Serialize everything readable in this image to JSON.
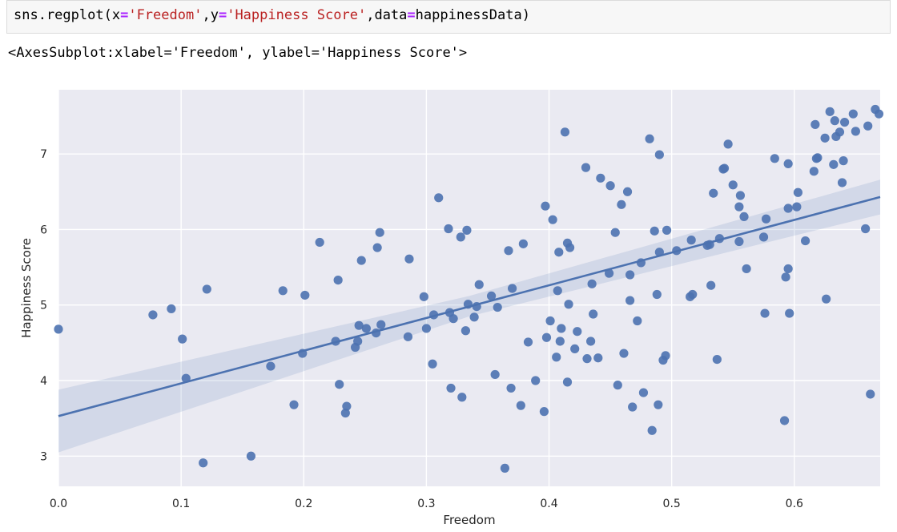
{
  "code_cell": {
    "func": "sns.regplot(",
    "arg1_name": "x",
    "arg1_eq": "=",
    "arg1_val": "'Freedom'",
    "comma1": ",",
    "arg2_name": "y",
    "arg2_eq": "=",
    "arg2_val": "'Happiness Score'",
    "comma2": ",",
    "arg3_name": "data",
    "arg3_eq": "=",
    "arg3_val": "happinessData",
    "close": ")"
  },
  "output": {
    "text": "<AxesSubplot:xlabel='Freedom', ylabel='Happiness Score'>"
  },
  "chart_data": {
    "type": "scatter",
    "xlabel": "Freedom",
    "ylabel": "Happiness Score",
    "xlim": [
      0.0,
      0.67
    ],
    "ylim": [
      2.6,
      7.85
    ],
    "xticks": [
      "0.0",
      "0.1",
      "0.2",
      "0.3",
      "0.4",
      "0.5",
      "0.6"
    ],
    "xtick_values": [
      0.0,
      0.1,
      0.2,
      0.3,
      0.4,
      0.5,
      0.6
    ],
    "yticks": [
      "3",
      "4",
      "5",
      "6",
      "7"
    ],
    "ytick_values": [
      3,
      4,
      5,
      6,
      7
    ],
    "grid": true,
    "regression_line": {
      "x": [
        0.0,
        0.67
      ],
      "y": [
        3.53,
        6.43
      ]
    },
    "confidence_band": {
      "x": [
        0.0,
        0.335,
        0.67
      ],
      "lower": [
        3.05,
        4.85,
        6.2
      ],
      "upper": [
        3.88,
        5.12,
        6.66
      ]
    },
    "colors": {
      "points": "#4c72b0",
      "line": "#4c72b0",
      "band": "#4c72b0",
      "background": "#eaeaf2",
      "grid": "#ffffff"
    },
    "points": [
      [
        0.0,
        4.68
      ],
      [
        0.077,
        4.87
      ],
      [
        0.092,
        4.95
      ],
      [
        0.101,
        4.55
      ],
      [
        0.104,
        4.03
      ],
      [
        0.118,
        2.91
      ],
      [
        0.121,
        5.21
      ],
      [
        0.157,
        3.0
      ],
      [
        0.173,
        4.19
      ],
      [
        0.183,
        5.19
      ],
      [
        0.192,
        3.68
      ],
      [
        0.199,
        4.36
      ],
      [
        0.201,
        5.13
      ],
      [
        0.213,
        5.83
      ],
      [
        0.226,
        4.52
      ],
      [
        0.228,
        5.33
      ],
      [
        0.229,
        3.95
      ],
      [
        0.234,
        3.57
      ],
      [
        0.235,
        3.66
      ],
      [
        0.242,
        4.44
      ],
      [
        0.244,
        4.52
      ],
      [
        0.245,
        4.73
      ],
      [
        0.247,
        5.59
      ],
      [
        0.251,
        4.69
      ],
      [
        0.259,
        4.63
      ],
      [
        0.26,
        5.76
      ],
      [
        0.262,
        5.96
      ],
      [
        0.263,
        4.74
      ],
      [
        0.285,
        4.58
      ],
      [
        0.286,
        5.61
      ],
      [
        0.298,
        5.11
      ],
      [
        0.3,
        4.69
      ],
      [
        0.305,
        4.22
      ],
      [
        0.306,
        4.87
      ],
      [
        0.31,
        6.42
      ],
      [
        0.318,
        6.01
      ],
      [
        0.319,
        4.9
      ],
      [
        0.32,
        3.9
      ],
      [
        0.322,
        4.82
      ],
      [
        0.328,
        5.9
      ],
      [
        0.329,
        3.78
      ],
      [
        0.332,
        4.66
      ],
      [
        0.333,
        5.99
      ],
      [
        0.334,
        5.01
      ],
      [
        0.339,
        4.84
      ],
      [
        0.341,
        4.98
      ],
      [
        0.343,
        5.27
      ],
      [
        0.353,
        5.12
      ],
      [
        0.356,
        4.08
      ],
      [
        0.358,
        4.97
      ],
      [
        0.364,
        2.84
      ],
      [
        0.367,
        5.72
      ],
      [
        0.369,
        3.9
      ],
      [
        0.37,
        5.22
      ],
      [
        0.377,
        3.67
      ],
      [
        0.379,
        5.81
      ],
      [
        0.383,
        4.51
      ],
      [
        0.389,
        4.0
      ],
      [
        0.396,
        3.59
      ],
      [
        0.397,
        6.31
      ],
      [
        0.398,
        4.57
      ],
      [
        0.401,
        4.79
      ],
      [
        0.403,
        6.13
      ],
      [
        0.406,
        4.31
      ],
      [
        0.407,
        5.19
      ],
      [
        0.408,
        5.7
      ],
      [
        0.409,
        4.52
      ],
      [
        0.41,
        4.69
      ],
      [
        0.413,
        7.29
      ],
      [
        0.415,
        5.82
      ],
      [
        0.415,
        3.98
      ],
      [
        0.416,
        5.01
      ],
      [
        0.417,
        5.76
      ],
      [
        0.421,
        4.42
      ],
      [
        0.423,
        4.65
      ],
      [
        0.43,
        6.82
      ],
      [
        0.431,
        4.29
      ],
      [
        0.434,
        4.52
      ],
      [
        0.435,
        5.28
      ],
      [
        0.436,
        4.88
      ],
      [
        0.44,
        4.3
      ],
      [
        0.442,
        6.68
      ],
      [
        0.449,
        5.42
      ],
      [
        0.45,
        6.58
      ],
      [
        0.454,
        5.96
      ],
      [
        0.456,
        3.94
      ],
      [
        0.459,
        6.33
      ],
      [
        0.461,
        4.36
      ],
      [
        0.464,
        6.5
      ],
      [
        0.466,
        5.4
      ],
      [
        0.466,
        5.06
      ],
      [
        0.468,
        3.65
      ],
      [
        0.472,
        4.79
      ],
      [
        0.475,
        5.56
      ],
      [
        0.477,
        3.84
      ],
      [
        0.482,
        7.2
      ],
      [
        0.484,
        3.34
      ],
      [
        0.486,
        5.98
      ],
      [
        0.488,
        5.14
      ],
      [
        0.489,
        3.68
      ],
      [
        0.49,
        6.99
      ],
      [
        0.49,
        5.7
      ],
      [
        0.493,
        4.27
      ],
      [
        0.495,
        4.33
      ],
      [
        0.496,
        5.99
      ],
      [
        0.504,
        5.72
      ],
      [
        0.515,
        5.11
      ],
      [
        0.516,
        5.86
      ],
      [
        0.517,
        5.14
      ],
      [
        0.529,
        5.79
      ],
      [
        0.531,
        5.8
      ],
      [
        0.532,
        5.26
      ],
      [
        0.534,
        6.48
      ],
      [
        0.537,
        4.28
      ],
      [
        0.539,
        5.88
      ],
      [
        0.542,
        6.8
      ],
      [
        0.543,
        6.81
      ],
      [
        0.546,
        7.13
      ],
      [
        0.55,
        6.59
      ],
      [
        0.555,
        5.84
      ],
      [
        0.555,
        6.3
      ],
      [
        0.556,
        6.45
      ],
      [
        0.559,
        6.17
      ],
      [
        0.561,
        5.48
      ],
      [
        0.575,
        5.9
      ],
      [
        0.576,
        4.89
      ],
      [
        0.577,
        6.14
      ],
      [
        0.584,
        6.94
      ],
      [
        0.592,
        3.47
      ],
      [
        0.593,
        5.37
      ],
      [
        0.595,
        6.87
      ],
      [
        0.595,
        6.28
      ],
      [
        0.595,
        5.48
      ],
      [
        0.596,
        4.89
      ],
      [
        0.602,
        6.3
      ],
      [
        0.603,
        6.49
      ],
      [
        0.609,
        5.85
      ],
      [
        0.616,
        6.77
      ],
      [
        0.617,
        7.39
      ],
      [
        0.618,
        6.94
      ],
      [
        0.619,
        6.95
      ],
      [
        0.625,
        7.21
      ],
      [
        0.626,
        5.08
      ],
      [
        0.629,
        7.56
      ],
      [
        0.632,
        6.86
      ],
      [
        0.633,
        7.44
      ],
      [
        0.634,
        7.23
      ],
      [
        0.637,
        7.29
      ],
      [
        0.639,
        6.62
      ],
      [
        0.64,
        6.91
      ],
      [
        0.641,
        7.42
      ],
      [
        0.648,
        7.53
      ],
      [
        0.65,
        7.3
      ],
      [
        0.658,
        6.01
      ],
      [
        0.66,
        7.37
      ],
      [
        0.662,
        3.82
      ],
      [
        0.666,
        7.59
      ],
      [
        0.669,
        7.53
      ]
    ]
  }
}
